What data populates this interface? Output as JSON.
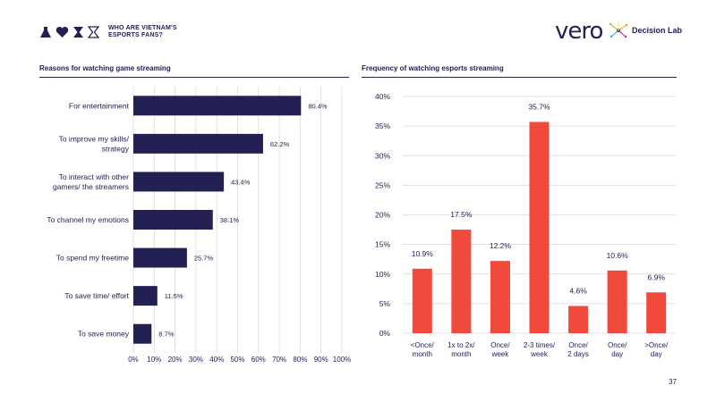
{
  "header": {
    "report_title_line1": "WHO ARE VIETNAM'S",
    "report_title_line2": "ESPORTS FANS?",
    "brand_vero": "vero",
    "brand_decision_lab": "Decision Lab",
    "icons": [
      "flask-icon",
      "heart-icon",
      "hourglass-icon",
      "hourglass-outline-icon"
    ]
  },
  "colors": {
    "navy": "#232154",
    "red": "#ef4a3c",
    "grid": "#d9d9d9"
  },
  "page_number": "37",
  "chart_data": [
    {
      "type": "bar",
      "orientation": "horizontal",
      "title": "Reasons for watching game streaming",
      "categories": [
        [
          "For entertainment"
        ],
        [
          "To improve my skills/",
          "strategy"
        ],
        [
          "To interact with other",
          "gamers/ the streamers"
        ],
        [
          "To channel my emotions"
        ],
        [
          "To spend my freetime"
        ],
        [
          "To save time/ effort"
        ],
        [
          "To save money"
        ]
      ],
      "values": [
        80.4,
        62.2,
        43.4,
        38.1,
        25.7,
        11.5,
        8.7
      ],
      "value_labels": [
        "80.4%",
        "62.2%",
        "43.4%",
        "38.1%",
        "25.7%",
        "11.5%",
        "8.7%"
      ],
      "xlim": [
        0,
        100
      ],
      "x_ticks": [
        "0%",
        "10%",
        "20%",
        "30%",
        "40%",
        "50%",
        "60%",
        "70%",
        "80%",
        "90%",
        "100%"
      ],
      "grid": true,
      "color": "#232154"
    },
    {
      "type": "bar",
      "orientation": "vertical",
      "title": "Frequency of watching esports streaming",
      "categories": [
        [
          "<Once/",
          "month"
        ],
        [
          "1x to 2x/",
          "month"
        ],
        [
          "Once/",
          "week"
        ],
        [
          "2-3 times/",
          "week"
        ],
        [
          "Once/",
          "2 days"
        ],
        [
          "Once/",
          "day"
        ],
        [
          ">Once/",
          "day"
        ]
      ],
      "values": [
        10.9,
        17.5,
        12.2,
        35.7,
        4.6,
        10.6,
        6.9
      ],
      "value_labels": [
        "10.9%",
        "17.5%",
        "12.2%",
        "35.7%",
        "4.6%",
        "10.6%",
        "6.9%"
      ],
      "ylim": [
        0,
        40
      ],
      "y_ticks": [
        "0%",
        "5%",
        "10%",
        "15%",
        "20%",
        "25%",
        "30%",
        "35%",
        "40%"
      ],
      "grid": true,
      "color": "#ef4a3c"
    }
  ]
}
